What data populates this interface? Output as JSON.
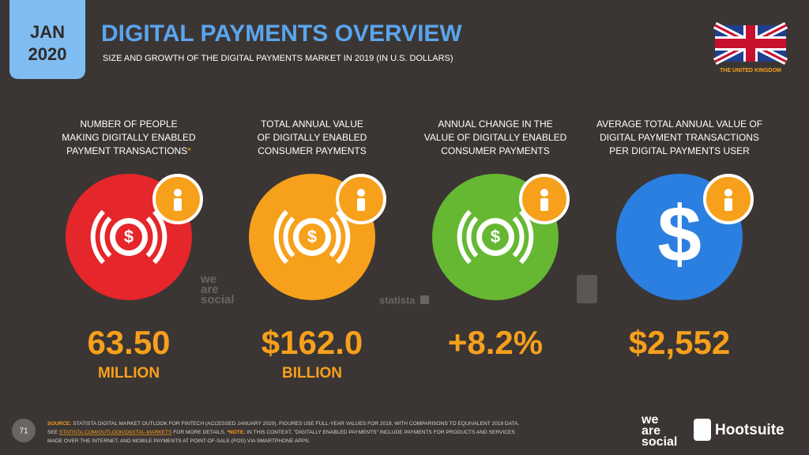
{
  "header": {
    "month": "JAN",
    "year": "2020",
    "title": "DIGITAL PAYMENTS OVERVIEW",
    "subtitle": "SIZE AND GROWTH OF THE DIGITAL PAYMENTS MARKET IN 2019 (IN U.S. DOLLARS)",
    "country": "THE UNITED KINGDOM"
  },
  "stats": [
    {
      "label": [
        "NUMBER OF PEOPLE",
        "MAKING DIGITALLY ENABLED",
        "PAYMENT TRANSACTIONS"
      ],
      "asterisk": "*",
      "value": "63.50",
      "unit": "MILLION",
      "color": "#e5262a"
    },
    {
      "label": [
        "TOTAL ANNUAL VALUE",
        "OF DIGITALLY ENABLED",
        "CONSUMER PAYMENTS"
      ],
      "value": "$162.0",
      "unit": "BILLION",
      "color": "#f7a01c"
    },
    {
      "label": [
        "ANNUAL CHANGE IN THE",
        "VALUE OF DIGITALLY ENABLED",
        "CONSUMER PAYMENTS"
      ],
      "value": "+8.2%",
      "color": "#66b832"
    },
    {
      "label": [
        "AVERAGE TOTAL ANNUAL VALUE OF",
        "DIGITAL PAYMENT TRANSACTIONS",
        "PER DIGITAL PAYMENTS USER"
      ],
      "value": "$2,552",
      "color": "#2a7fe0"
    }
  ],
  "watermarks": {
    "wearesocial": [
      "we",
      "are",
      "social"
    ],
    "statista": "statista"
  },
  "footer": {
    "page": "71",
    "source_label": "SOURCE:",
    "source_text": "STATISTA DIGITAL MARKET OUTLOOK FOR FINTECH (ACCESSED JANUARY 2020). FIGURES USE FULL-YEAR VALUES FOR 2019, WITH COMPARISONS TO EQUIVALENT 2018 DATA.",
    "see": "SEE",
    "link": "STATISTA.COM/OUTLOOK/DIGITAL-MARKETS",
    "more": "FOR MORE DETAILS.",
    "note_label": "*NOTE:",
    "note_text": "IN THIS CONTEXT, \"DIGITALLY ENABLED PAYMENTS\" INCLUDE PAYMENTS FOR PRODUCTS AND SERVICES",
    "note_text2": "MADE OVER THE INTERNET, AND MOBILE PAYMENTS AT POINT-OF-SALE (POS) VIA SMARTPHONE APPS.",
    "brand1": [
      "we",
      "are",
      "social"
    ],
    "brand2": "Hootsuite"
  }
}
